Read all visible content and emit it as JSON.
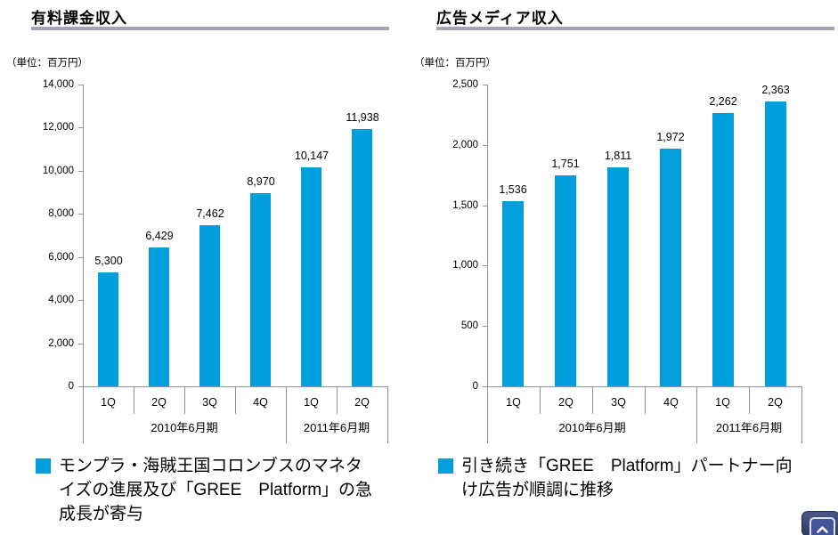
{
  "chart_data": [
    {
      "type": "bar",
      "title": "有料課金収入",
      "unit_label": "（単位：百万円）",
      "categories": [
        "1Q",
        "2Q",
        "3Q",
        "4Q",
        "1Q",
        "2Q"
      ],
      "category_groups": [
        {
          "label": "2010年6月期",
          "span": 4
        },
        {
          "label": "2011年6月期",
          "span": 2
        }
      ],
      "values": [
        5300,
        6429,
        7462,
        8970,
        10147,
        11938
      ],
      "value_labels": [
        "5,300",
        "6,429",
        "7,462",
        "8,970",
        "10,147",
        "11,938"
      ],
      "ylim": [
        0,
        14000
      ],
      "ytick_step": 2000,
      "yticks": [
        "0",
        "2,000",
        "4,000",
        "6,000",
        "8,000",
        "10,000",
        "12,000",
        "14,000"
      ],
      "bar_color": "#009eda",
      "grid": false,
      "legend": "none",
      "note": "モンプラ・海賊王国コロンブスのマネタイズの進展及び「GREE　Platform」の急成長が寄与"
    },
    {
      "type": "bar",
      "title": "広告メディア収入",
      "unit_label": "（単位：百万円）",
      "categories": [
        "1Q",
        "2Q",
        "3Q",
        "4Q",
        "1Q",
        "2Q"
      ],
      "category_groups": [
        {
          "label": "2010年6月期",
          "span": 4
        },
        {
          "label": "2011年6月期",
          "span": 2
        }
      ],
      "values": [
        1536,
        1751,
        1811,
        1972,
        2262,
        2363
      ],
      "value_labels": [
        "1,536",
        "1,751",
        "1,811",
        "1,972",
        "2,262",
        "2,363"
      ],
      "ylim": [
        0,
        2500
      ],
      "ytick_step": 500,
      "yticks": [
        "0",
        "500",
        "1,000",
        "1,500",
        "2,000",
        "2,500"
      ],
      "bar_color": "#009eda",
      "grid": false,
      "legend": "none",
      "note": "引き続き「GREE　Platform」パートナー向け広告が順調に推移"
    }
  ],
  "style": {
    "accent_color": "#009eda",
    "axis_color": "#8e939b",
    "title_rule_color": "#a5a6b5"
  },
  "icons": {
    "scroll_top": "chevron-up"
  }
}
